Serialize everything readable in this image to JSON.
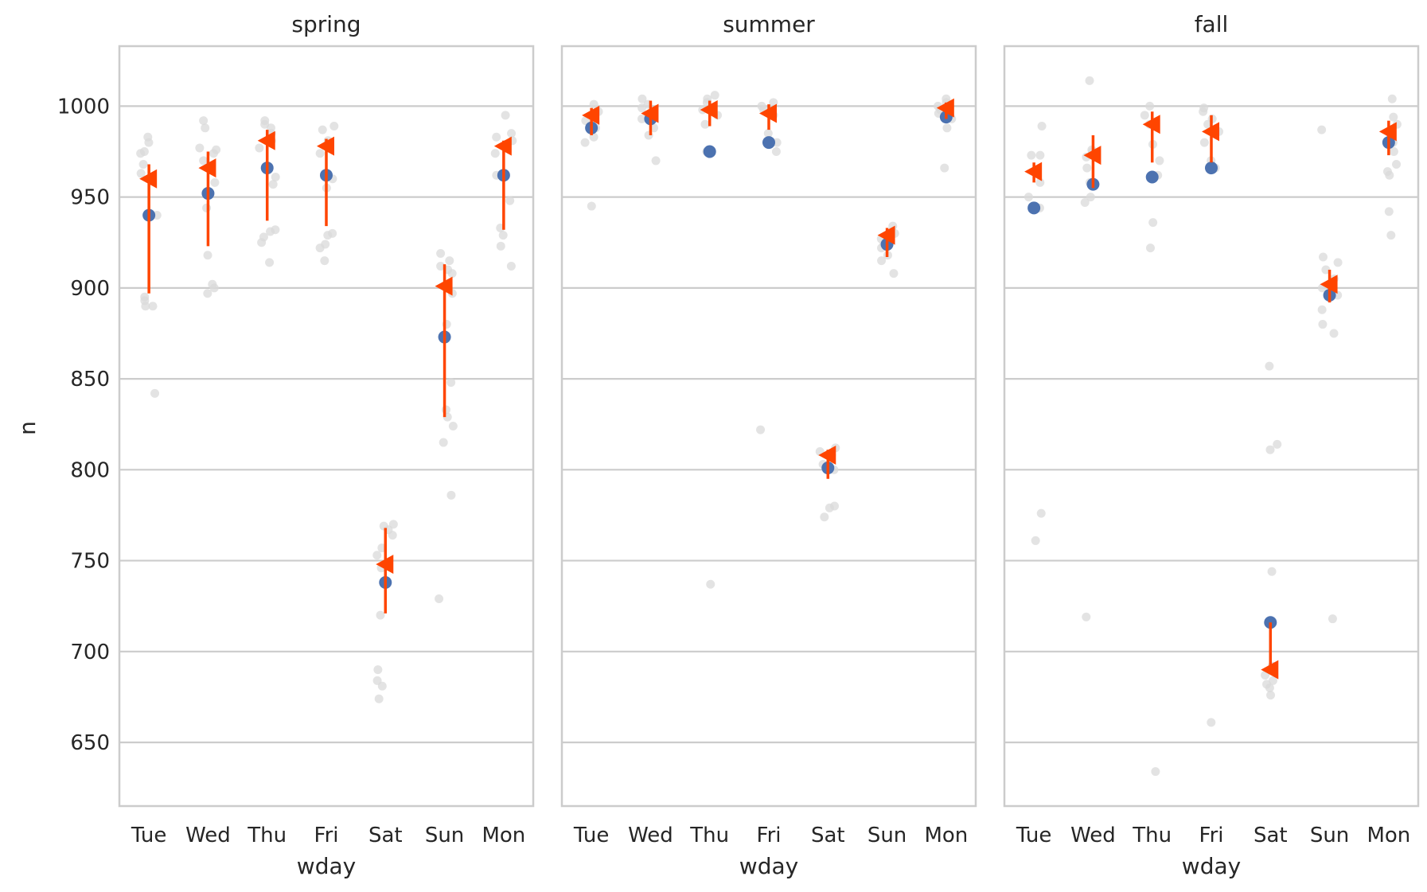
{
  "chart_data": {
    "type": "scatter",
    "ylabel": "n",
    "xlabel": "wday",
    "categories": [
      "Tue",
      "Wed",
      "Thu",
      "Fri",
      "Sat",
      "Sun",
      "Mon"
    ],
    "yticks": [
      650,
      700,
      750,
      800,
      850,
      900,
      950,
      1000
    ],
    "ylim": [
      615,
      1033
    ],
    "grid": "horizontal",
    "colors": {
      "mean": "#4c72b0",
      "marker": "#ff4500",
      "raw": "#d9d9d9"
    },
    "facets": [
      {
        "title": "spring",
        "mean": [
          940,
          952,
          966,
          962,
          738,
          873,
          962
        ],
        "ci_low": [
          897,
          923,
          937,
          934,
          721,
          829,
          932
        ],
        "ci_high": [
          968,
          975,
          987,
          982,
          768,
          913,
          981
        ],
        "marker": [
          960,
          966,
          981,
          978,
          748,
          901,
          978
        ],
        "raw": [
          [
            983,
            980,
            975,
            974,
            968,
            963,
            940,
            895,
            893,
            890,
            890,
            842
          ],
          [
            992,
            988,
            977,
            976,
            974,
            970,
            958,
            944,
            918,
            902,
            900,
            897
          ],
          [
            992,
            990,
            988,
            985,
            981,
            977,
            961,
            957,
            932,
            931,
            928,
            925,
            914
          ],
          [
            989,
            987,
            981,
            978,
            974,
            960,
            955,
            930,
            929,
            924,
            922,
            915
          ],
          [
            770,
            769,
            767,
            764,
            757,
            753,
            746,
            720,
            690,
            684,
            681,
            674
          ],
          [
            919,
            915,
            912,
            910,
            908,
            897,
            880,
            848,
            833,
            829,
            824,
            815,
            786,
            729
          ],
          [
            995,
            985,
            983,
            981,
            978,
            974,
            962,
            948,
            933,
            929,
            923,
            912
          ]
        ]
      },
      {
        "title": "summer",
        "mean": [
          988,
          993,
          975,
          980,
          801,
          924,
          994
        ],
        "ci_low": [
          984,
          984,
          989,
          987,
          795,
          917,
          993
        ],
        "ci_high": [
          999,
          1003,
          1003,
          1001,
          811,
          933,
          1002
        ],
        "marker": [
          995,
          996,
          998,
          996,
          808,
          929,
          999
        ],
        "raw": [
          [
            1001,
            997,
            995,
            992,
            988,
            983,
            980,
            945
          ],
          [
            1004,
            1001,
            999,
            995,
            993,
            988,
            984,
            970
          ],
          [
            1006,
            1004,
            1002,
            998,
            995,
            990,
            975,
            737
          ],
          [
            1002,
            1000,
            998,
            995,
            985,
            980,
            975,
            822
          ],
          [
            812,
            810,
            808,
            803,
            800,
            780,
            779,
            774
          ],
          [
            934,
            930,
            927,
            924,
            922,
            918,
            915,
            908
          ],
          [
            1004,
            1002,
            1000,
            998,
            996,
            993,
            988,
            966
          ]
        ]
      },
      {
        "title": "fall",
        "mean": [
          944,
          957,
          961,
          966,
          716,
          896,
          980
        ],
        "ci_low": [
          958,
          955,
          969,
          969,
          689,
          892,
          973
        ],
        "ci_high": [
          969,
          984,
          997,
          995,
          716,
          910,
          992
        ],
        "marker": [
          964,
          973,
          990,
          986,
          690,
          902,
          986
        ],
        "raw": [
          [
            989,
            973,
            973,
            965,
            958,
            950,
            944,
            776,
            761
          ],
          [
            1014,
            976,
            975,
            972,
            966,
            958,
            950,
            947,
            719
          ],
          [
            1000,
            995,
            990,
            979,
            970,
            962,
            936,
            922,
            634
          ],
          [
            999,
            997,
            993,
            990,
            986,
            980,
            970,
            966,
            661
          ],
          [
            857,
            814,
            811,
            744,
            716,
            692,
            687,
            684,
            682,
            680,
            676
          ],
          [
            987,
            917,
            914,
            910,
            905,
            900,
            896,
            888,
            880,
            875,
            718
          ],
          [
            1004,
            994,
            990,
            985,
            980,
            975,
            968,
            964,
            962,
            942,
            929
          ]
        ]
      }
    ]
  }
}
